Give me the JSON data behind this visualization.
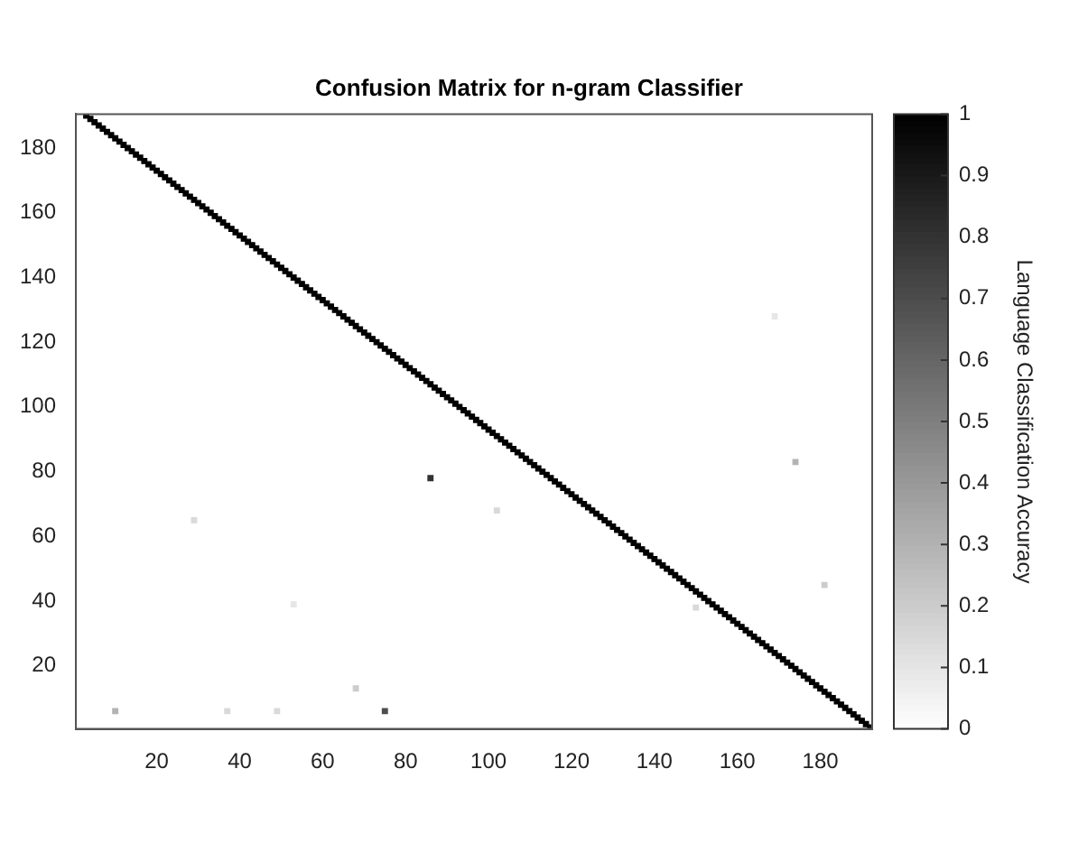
{
  "chart_data": {
    "type": "scatter",
    "title": "Confusion Matrix for n-gram Classifier",
    "clabel": "Language Classification Accuracy",
    "marker": "square",
    "series": [
      {
        "x": [
          3,
          4,
          5,
          6,
          7,
          8,
          9,
          10,
          11,
          12,
          13,
          14,
          15,
          16,
          17,
          18,
          19,
          20,
          21,
          22,
          23,
          24,
          25,
          26,
          27,
          28,
          29,
          30,
          31,
          32,
          33,
          34,
          35,
          36,
          37,
          38,
          39,
          40,
          41,
          42,
          43,
          44,
          45,
          46,
          47,
          48,
          49,
          50,
          51,
          52,
          53,
          54,
          55,
          56,
          57,
          58,
          59,
          60,
          61,
          62,
          63,
          64,
          65,
          66,
          67,
          68,
          69,
          70,
          71,
          72,
          73,
          74,
          75,
          76,
          77,
          78,
          79,
          80,
          81,
          82,
          83,
          84,
          85,
          86,
          87,
          88,
          89,
          90,
          91,
          92,
          93,
          94,
          95,
          96,
          97,
          98,
          99,
          100,
          101,
          102,
          103,
          104,
          105,
          106,
          107,
          108,
          109,
          110,
          111,
          112,
          113,
          114,
          115,
          116,
          117,
          118,
          119,
          120,
          121,
          122,
          123,
          124,
          125,
          126,
          127,
          128,
          129,
          130,
          131,
          132,
          133,
          134,
          135,
          136,
          137,
          138,
          139,
          140,
          141,
          142,
          143,
          144,
          145,
          146,
          147,
          148,
          149,
          150,
          151,
          152,
          153,
          154,
          155,
          156,
          157,
          158,
          159,
          160,
          161,
          162,
          163,
          164,
          165,
          166,
          167,
          168,
          169,
          170,
          171,
          172,
          173,
          174,
          175,
          176,
          177,
          178,
          179,
          180,
          181,
          182,
          183,
          184,
          185,
          186,
          187,
          188,
          189,
          190,
          191,
          192
        ],
        "values": [
          190,
          189,
          188,
          187,
          186,
          185,
          184,
          183,
          182,
          181,
          180,
          179,
          178,
          177,
          176,
          175,
          174,
          173,
          172,
          171,
          170,
          169,
          168,
          167,
          166,
          165,
          164,
          163,
          162,
          161,
          160,
          159,
          158,
          157,
          156,
          155,
          154,
          153,
          152,
          151,
          150,
          149,
          148,
          147,
          146,
          145,
          144,
          143,
          142,
          141,
          140,
          139,
          138,
          137,
          136,
          135,
          134,
          133,
          132,
          131,
          130,
          129,
          128,
          127,
          126,
          125,
          124,
          123,
          122,
          121,
          120,
          119,
          118,
          117,
          116,
          115,
          114,
          113,
          112,
          111,
          110,
          109,
          108,
          107,
          106,
          105,
          104,
          103,
          102,
          101,
          100,
          99,
          98,
          97,
          96,
          95,
          94,
          93,
          92,
          91,
          90,
          89,
          88,
          87,
          86,
          85,
          84,
          83,
          82,
          81,
          80,
          79,
          78,
          77,
          76,
          75,
          74,
          73,
          72,
          71,
          70,
          69,
          68,
          67,
          66,
          65,
          64,
          63,
          62,
          61,
          60,
          59,
          58,
          57,
          56,
          55,
          54,
          53,
          52,
          51,
          50,
          49,
          48,
          47,
          46,
          45,
          44,
          43,
          42,
          41,
          40,
          39,
          38,
          37,
          36,
          35,
          34,
          33,
          32,
          31,
          30,
          29,
          28,
          27,
          26,
          25,
          24,
          23,
          22,
          21,
          20,
          19,
          18,
          17,
          16,
          15,
          14,
          13,
          12,
          11,
          10,
          9,
          8,
          7,
          6,
          5,
          4,
          3,
          2,
          1
        ],
        "cvalues": [
          1,
          1,
          1,
          1,
          1,
          1,
          1,
          1,
          1,
          1,
          1,
          1,
          1,
          1,
          1,
          1,
          1,
          1,
          1,
          1,
          1,
          1,
          1,
          1,
          1,
          1,
          1,
          1,
          1,
          1,
          1,
          1,
          1,
          1,
          1,
          1,
          1,
          1,
          1,
          1,
          1,
          1,
          1,
          1,
          1,
          1,
          1,
          1,
          1,
          1,
          1,
          1,
          1,
          1,
          1,
          1,
          1,
          1,
          1,
          1,
          1,
          1,
          1,
          1,
          1,
          1,
          1,
          1,
          1,
          1,
          1,
          1,
          1,
          1,
          1,
          1,
          1,
          1,
          1,
          1,
          1,
          1,
          1,
          1,
          1,
          1,
          1,
          1,
          1,
          1,
          1,
          1,
          1,
          1,
          1,
          1,
          1,
          1,
          1,
          1,
          1,
          1,
          1,
          1,
          1,
          1,
          1,
          1,
          1,
          1,
          1,
          1,
          1,
          1,
          1,
          1,
          1,
          1,
          1,
          1,
          1,
          1,
          1,
          1,
          1,
          1,
          1,
          1,
          1,
          1,
          1,
          1,
          1,
          1,
          1,
          1,
          1,
          1,
          1,
          1,
          1,
          1,
          1,
          1,
          1,
          1,
          1,
          1,
          1,
          1,
          1,
          1,
          1,
          1,
          1,
          1,
          1,
          1,
          1,
          1,
          1,
          1,
          1,
          1,
          1,
          1,
          1,
          1,
          1,
          1,
          1,
          1,
          1,
          1,
          1,
          1,
          1,
          1,
          1,
          1,
          1,
          1,
          1,
          1,
          1,
          1,
          1,
          1,
          1,
          1
        ]
      },
      {
        "x": [
          86,
          75,
          10,
          37,
          49,
          174,
          181,
          68,
          29,
          102,
          150,
          53,
          169
        ],
        "values": [
          78,
          6,
          6,
          6,
          6,
          83,
          45,
          13,
          65,
          68,
          38,
          39,
          128
        ],
        "cvalues": [
          0.8,
          0.7,
          0.3,
          0.15,
          0.15,
          0.3,
          0.2,
          0.2,
          0.15,
          0.15,
          0.15,
          0.1,
          0.1
        ],
        "colors": [
          "#333333",
          "#4d4d4d",
          "#b3b3b3",
          "#d9d9d9",
          "#d9d9d9",
          "#b3b3b3",
          "#cccccc",
          "#cccccc",
          "#d9d9d9",
          "#d9d9d9",
          "#d9d9d9",
          "#e6e6e6",
          "#e6e6e6"
        ]
      }
    ],
    "xlim": [
      0.5,
      192.5
    ],
    "ylim": [
      0.5,
      190.5
    ],
    "xticks": [
      20,
      40,
      60,
      80,
      100,
      120,
      140,
      160,
      180
    ],
    "yticks": [
      20,
      40,
      60,
      80,
      100,
      120,
      140,
      160,
      180
    ],
    "clim": [
      0,
      1
    ],
    "cticks": [
      0,
      0.1,
      0.2,
      0.3,
      0.4,
      0.5,
      0.6,
      0.7,
      0.8,
      0.9,
      1
    ]
  }
}
